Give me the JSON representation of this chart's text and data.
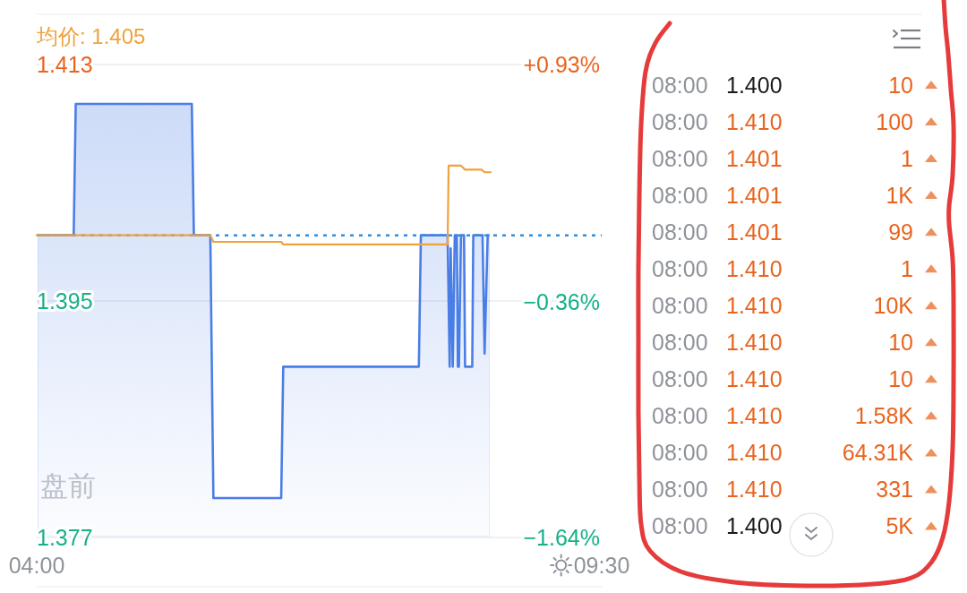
{
  "chart_data": [
    {
      "type": "line",
      "xlim": [
        4,
        9.5
      ],
      "xticks": [
        {
          "value": 4,
          "label": "04:00"
        },
        {
          "value": 9.5,
          "label": "09:30"
        }
      ],
      "ylim": [
        1.377,
        1.413
      ],
      "yticks": [
        1.413,
        1.395,
        1.377
      ],
      "y2lim": [
        -1.64,
        0.93
      ],
      "y2ticks": [
        {
          "value": 0.93,
          "label": "+0.93%"
        },
        {
          "value": -0.36,
          "label": "−0.36%"
        },
        {
          "value": -1.64,
          "label": "−1.64%"
        }
      ],
      "grid": "y",
      "legend": "top left",
      "ref_lines": [
        {
          "axis": "y",
          "value": 1.4,
          "color": "#2e8de6",
          "line_style": "dotted"
        }
      ],
      "annotations": [
        "盘前"
      ],
      "series": [
        {
          "type": "area",
          "color": "#4a7ee6",
          "x": [
            4.0,
            4.36,
            4.38,
            5.51,
            5.53,
            5.69,
            5.72,
            6.38,
            6.4,
            7.72,
            7.74,
            8.0,
            8.02,
            8.03,
            8.05,
            8.07,
            8.09,
            8.1,
            8.11,
            8.13,
            8.16,
            8.17,
            8.24,
            8.25,
            8.34,
            8.36,
            8.39,
            8.42
          ],
          "values": [
            1.4,
            1.4,
            1.41,
            1.41,
            1.4,
            1.4,
            1.38,
            1.38,
            1.39,
            1.39,
            1.4,
            1.4,
            1.39,
            1.399,
            1.39,
            1.4,
            1.4,
            1.39,
            1.39,
            1.4,
            1.4,
            1.39,
            1.39,
            1.4,
            1.4,
            1.391,
            1.4,
            1.4
          ]
        },
        {
          "type": "line",
          "name": "均价: 1.405",
          "color": "#f0a23c",
          "x": [
            4.0,
            5.69,
            5.72,
            6.38,
            6.4,
            8.0,
            8.01,
            8.13,
            8.17,
            8.33,
            8.36,
            8.42
          ],
          "values": [
            1.4,
            1.4,
            1.3995,
            1.3995,
            1.3993,
            1.3993,
            1.4053,
            1.4053,
            1.405,
            1.405,
            1.4048,
            1.4048
          ]
        }
      ]
    },
    {
      "type": "other",
      "categories": [
        "08:00",
        "08:00",
        "08:00",
        "08:00",
        "08:00",
        "08:00",
        "08:00",
        "08:00",
        "08:00",
        "08:00",
        "08:00",
        "08:00",
        "08:00"
      ],
      "y2_categories": [
        "10",
        "100",
        "1",
        "1K",
        "99",
        "1",
        "10K",
        "10",
        "10",
        "1.58K",
        "64.31K",
        "331",
        "5K"
      ],
      "series": [
        {
          "values": [
            1.4,
            1.41,
            1.401,
            1.401,
            1.401,
            1.41,
            1.41,
            1.41,
            1.41,
            1.41,
            1.41,
            1.41,
            1.4
          ],
          "value_labels": [
            "1.400",
            "1.410",
            "1.401",
            "1.401",
            "1.401",
            "1.410",
            "1.410",
            "1.410",
            "1.410",
            "1.410",
            "1.410",
            "1.410",
            "1.400"
          ]
        }
      ]
    }
  ]
}
